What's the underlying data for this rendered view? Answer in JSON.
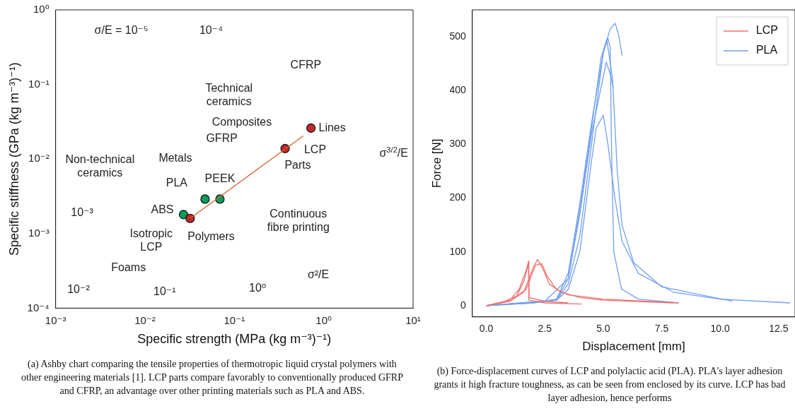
{
  "chart_data": [
    {
      "type": "scatter",
      "xlabel": "Specific strength (MPa (kg m⁻³)⁻¹)",
      "ylabel": "Specific stiffness (GPa (kg m⁻³)⁻¹)",
      "log": "xy",
      "xlim": [
        0.001,
        10
      ],
      "ylim": [
        0.0001,
        1
      ],
      "xticks": [
        {
          "value": 0.001,
          "label": "10⁻³"
        },
        {
          "value": 0.01,
          "label": "10⁻²"
        },
        {
          "value": 0.1,
          "label": "10⁻¹"
        },
        {
          "value": 1,
          "label": "10⁰"
        },
        {
          "value": 10,
          "label": "10¹"
        }
      ],
      "yticks": [
        {
          "value": 0.0001,
          "label": "10⁻⁴"
        },
        {
          "value": 0.001,
          "label": "10⁻³"
        },
        {
          "value": 0.01,
          "label": "10⁻²"
        },
        {
          "value": 0.1,
          "label": "10⁻¹"
        },
        {
          "value": 1,
          "label": "10⁰"
        }
      ],
      "grid": false,
      "legend": false,
      "series": [
        {
          "type": "line",
          "color": "#d0622e",
          "x": [
            0.032,
            0.59
          ],
          "values": [
            0.0016,
            0.0204
          ]
        },
        {
          "color": "#c0282a",
          "marker": "circle",
          "x": [
            0.032,
            0.37,
            0.72
          ],
          "values": [
            0.0016,
            0.0138,
            0.026
          ]
        },
        {
          "color": "#0a9a5a",
          "marker": "circle",
          "x": [
            0.027,
            0.047,
            0.069
          ],
          "values": [
            0.0018,
            0.0029,
            0.0029
          ]
        }
      ],
      "annotations": [
        {
          "text": "Lines",
          "x": 0.72,
          "y": 0.026
        },
        {
          "text": "Parts",
          "x": 0.37,
          "y": 0.0138
        },
        {
          "text": "PLA",
          "x": 0.047,
          "y": 0.0029
        },
        {
          "text": "PEEK",
          "x": 0.069,
          "y": 0.0029
        },
        {
          "text": "ABS",
          "x": 0.027,
          "y": 0.0018
        },
        {
          "text": "Isotropic\nLCP",
          "x": 0.032,
          "y": 0.0016
        },
        "σ/E = 10⁻⁵",
        "10⁻⁴",
        "10⁻³",
        "10⁻²",
        "10⁻¹",
        "10⁰",
        "σ²/E",
        "σ$^{3/2}$/E",
        "CFRP",
        "Technical\nceramics",
        "Composites",
        "GFRP",
        "Non-technical\nceramics",
        "Metals",
        "Foams",
        "Polymers",
        "Continuous\nfibre printing",
        "LCP",
        "(a) Ashby chart comparing the tensile properties of thermotropic liquid crystal polymers with other engineering materials [1]. LCP parts compare favorably to conventionally produced GFRP and CFRP, an advantage over other printing materials such as PLA and ABS."
      ]
    },
    {
      "type": "line",
      "xlabel": "Displacement [mm]",
      "ylabel": "Force [N]",
      "xlim": [
        -0.6,
        13.2
      ],
      "ylim": [
        -21,
        550
      ],
      "xticks": [
        {
          "value": 0,
          "label": "0.0"
        },
        2.5,
        {
          "value": 5,
          "label": "5.0"
        },
        7.5,
        {
          "value": 10,
          "label": "10.0"
        },
        12.5
      ],
      "yticks": [
        0,
        100,
        200,
        300,
        400,
        500
      ],
      "grid": false,
      "legend": "top right",
      "marker": "none",
      "series": [
        {
          "name": "LCP",
          "color": "#f07070",
          "x": [
            0,
            0.5,
            1,
            1.4,
            1.7,
            1.81,
            1.82,
            2.5,
            4.08
          ],
          "values": [
            0,
            5,
            10,
            30,
            65,
            83,
            10,
            5,
            3
          ]
        },
        {
          "color": "#f07070",
          "x": [
            0,
            0.7,
            1.3,
            1.6,
            1.8,
            1.83,
            2.5,
            3.5
          ],
          "values": [
            0,
            6,
            18,
            45,
            78,
            15,
            8,
            5
          ]
        },
        {
          "color": "#f07070",
          "x": [
            0,
            1,
            1.6,
            2,
            2.19,
            2.4,
            2.7,
            3.2,
            4,
            5,
            8
          ],
          "values": [
            0,
            8,
            25,
            70,
            86,
            70,
            40,
            25,
            15,
            10,
            5
          ]
        },
        {
          "color": "#f07070",
          "x": [
            0,
            1,
            1.7,
            2.1,
            2.37,
            2.6,
            3,
            3.5,
            5,
            8.2
          ],
          "values": [
            0,
            8,
            30,
            75,
            78,
            55,
            30,
            20,
            12,
            5
          ]
        },
        {
          "name": "PLA",
          "color": "#70a0f0",
          "x": [
            0,
            2,
            3,
            3.5,
            4,
            4.5,
            5,
            5.3,
            5.51,
            5.65,
            5.81
          ],
          "values": [
            0,
            5,
            10,
            40,
            130,
            300,
            470,
            515,
            525,
            505,
            465
          ]
        },
        {
          "color": "#70a0f0",
          "x": [
            0,
            2,
            3,
            3.5,
            4,
            4.5,
            5,
            5.2,
            5.3,
            5.35,
            5.45,
            5.78,
            6.5,
            8.24
          ],
          "values": [
            0,
            5,
            12,
            60,
            190,
            340,
            470,
            497,
            480,
            300,
            100,
            31,
            12,
            5
          ]
        },
        {
          "color": "#70a0f0",
          "x": [
            0,
            2.5,
            3.5,
            4,
            4.5,
            5.13,
            5.3,
            5.43
          ],
          "values": [
            0,
            8,
            50,
            170,
            320,
            453,
            430,
            405
          ]
        },
        {
          "color": "#70a0f0",
          "x": [
            0,
            3,
            3.5,
            4,
            4.5,
            4.7,
            5,
            5.2,
            5.5,
            5.8,
            6.5,
            8,
            10,
            12.99
          ],
          "values": [
            0,
            10,
            30,
            100,
            270,
            330,
            354,
            300,
            200,
            120,
            60,
            25,
            12,
            5
          ]
        },
        {
          "color": "#70a0f0",
          "x": [
            0,
            3,
            3.5,
            4,
            4.5,
            4.9,
            5.15,
            5.4,
            5.6,
            5.8,
            6.3,
            7.5,
            10.53
          ],
          "values": [
            0,
            10,
            50,
            180,
            330,
            460,
            495,
            420,
            250,
            150,
            80,
            35,
            8
          ]
        }
      ],
      "annotations": [
        "(b) Force-displacement curves of LCP and polylactic acid (PLA). PLA's layer adhesion grants it high fracture toughness, as can be seen from enclosed by its curve. LCP has bad layer adhesion, hence performs"
      ]
    }
  ]
}
